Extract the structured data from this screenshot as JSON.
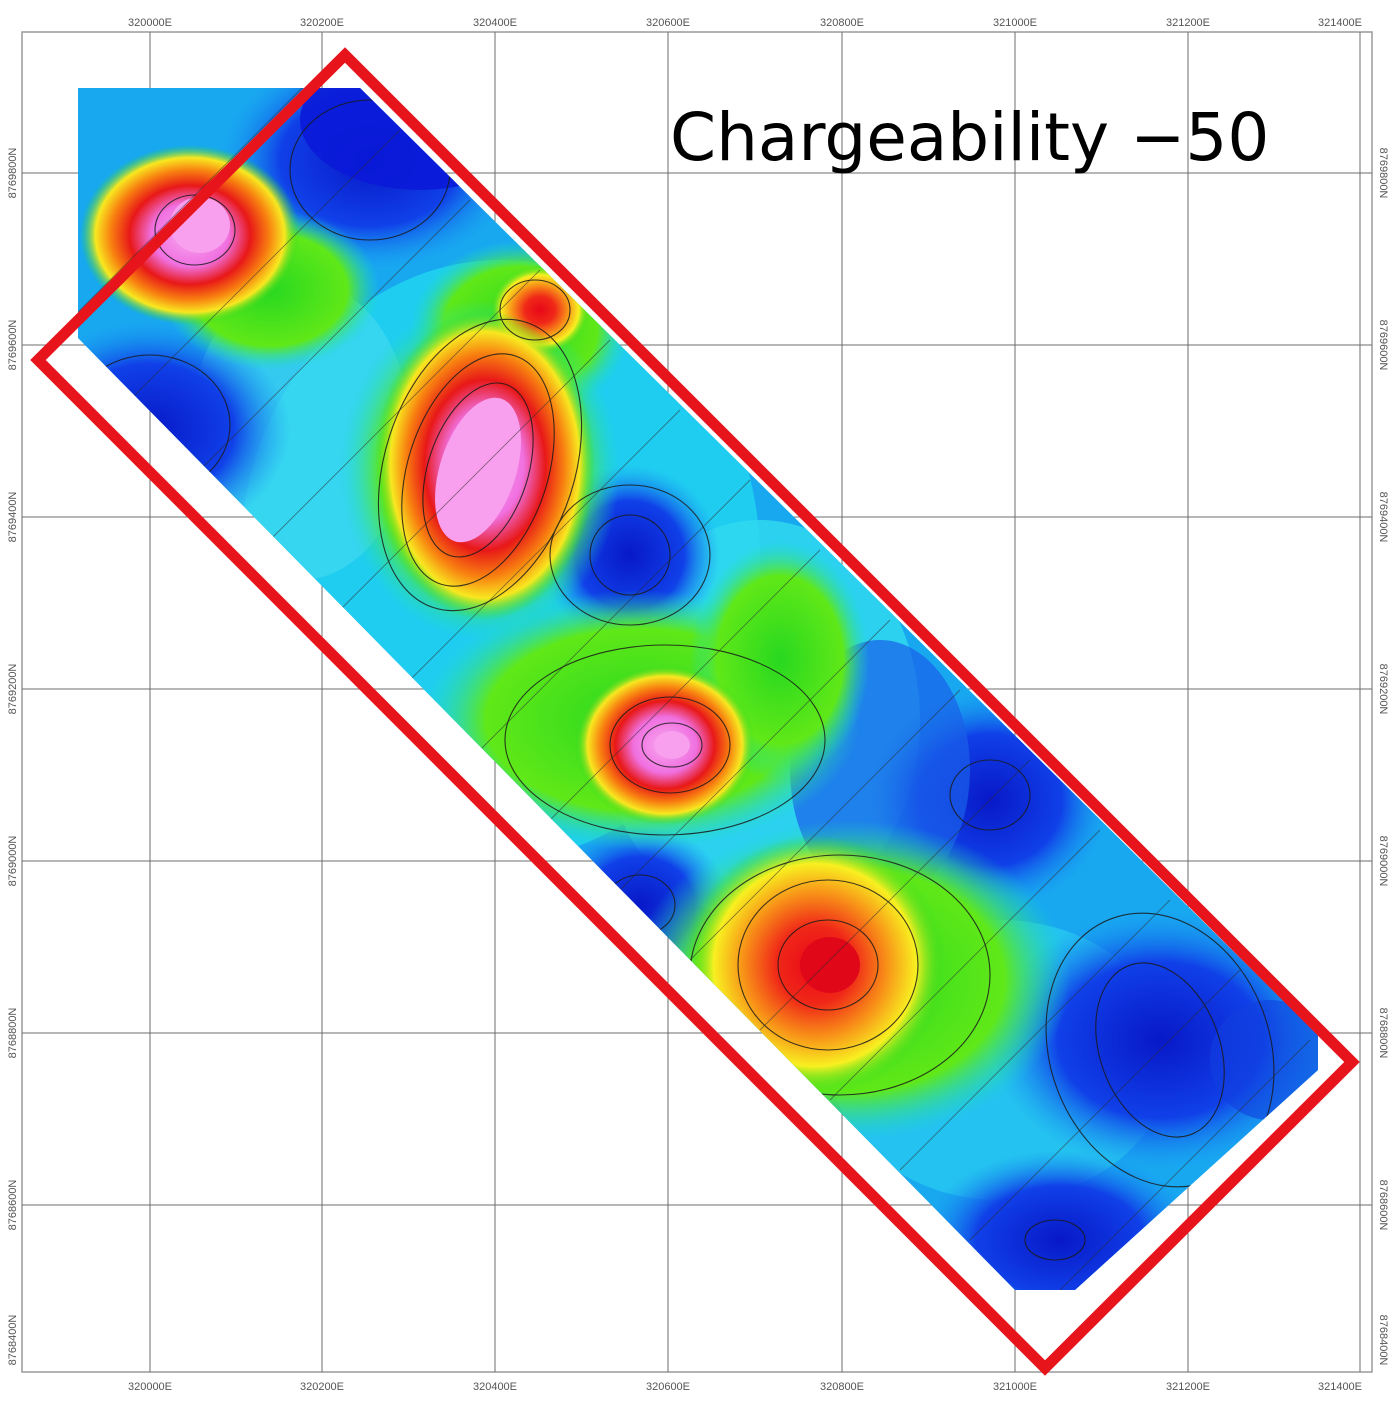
{
  "title": "Chargeability −50",
  "axes": {
    "x_ticks": [
      "320000E",
      "320200E",
      "320400E",
      "320600E",
      "320800E",
      "321000E",
      "321200E",
      "321400E"
    ],
    "y_ticks_left": [
      "8769600N",
      "8769400N",
      "8769200N",
      "8769000N",
      "8768800N",
      "8768600N",
      "8768400N"
    ],
    "y_ticks_left_top": "8769800N",
    "y_ticks_right": [
      "8769800N",
      "8769600N",
      "8769400N",
      "8769200N",
      "8769000N",
      "8768800N",
      "8768600N",
      "8768400N"
    ]
  },
  "colors": {
    "outline": "#e8141c",
    "low": "#0a1ad8",
    "mid_low": "#16c8f0",
    "mid": "#18d818",
    "mid_high": "#f8f020",
    "high": "#f02010",
    "max": "#f080e0"
  }
}
